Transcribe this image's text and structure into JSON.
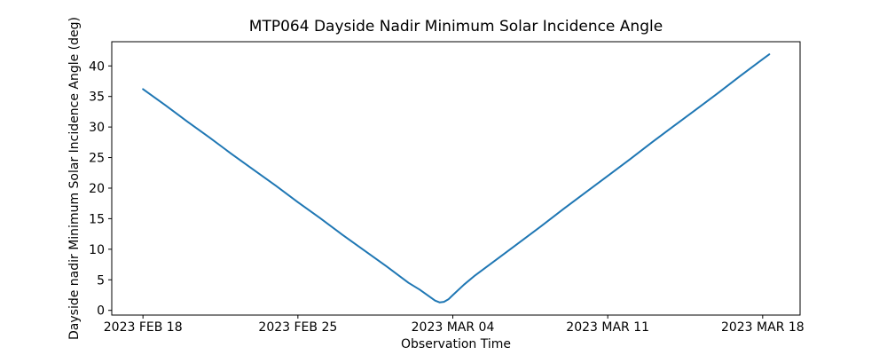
{
  "figure": {
    "background": "#ffffff",
    "text_color": "#000000"
  },
  "chart_data": {
    "type": "line",
    "title": "MTP064 Dayside Nadir Minimum Solar Incidence Angle",
    "xlabel": "Observation Time",
    "ylabel": "Dayside nadir Minimum Solar Incidence Angle (deg)",
    "legend": "none",
    "grid": false,
    "line_color": "#1f77b4",
    "line_width": 2,
    "x_unit": "days since 2023 FEB 18",
    "xlim": [
      -1.41,
      29.69
    ],
    "ylim": [
      -0.77,
      43.96
    ],
    "x_ticks": [
      {
        "day": 0,
        "label": "2023 FEB 18"
      },
      {
        "day": 7,
        "label": "2023 FEB 25"
      },
      {
        "day": 14,
        "label": "2023 MAR 04"
      },
      {
        "day": 21,
        "label": "2023 MAR 11"
      },
      {
        "day": 28,
        "label": "2023 MAR 18"
      }
    ],
    "y_ticks": [
      0,
      5,
      10,
      15,
      20,
      25,
      30,
      35,
      40
    ],
    "series": [
      {
        "name": "dayside-nadir-min-solar-incidence-angle",
        "points": [
          [
            0,
            36.2
          ],
          [
            1,
            33.6
          ],
          [
            2,
            30.9
          ],
          [
            3,
            28.3
          ],
          [
            4,
            25.6
          ],
          [
            5,
            23.0
          ],
          [
            6,
            20.4
          ],
          [
            7,
            17.7
          ],
          [
            8,
            15.1
          ],
          [
            9,
            12.4
          ],
          [
            10,
            9.8
          ],
          [
            11,
            7.2
          ],
          [
            12,
            4.5
          ],
          [
            12.5,
            3.4
          ],
          [
            13,
            2.1
          ],
          [
            13.2,
            1.6
          ],
          [
            13.4,
            1.3
          ],
          [
            13.6,
            1.4
          ],
          [
            13.8,
            1.8
          ],
          [
            14,
            2.5
          ],
          [
            14.5,
            4.2
          ],
          [
            15,
            5.7
          ],
          [
            16,
            8.4
          ],
          [
            17,
            11.1
          ],
          [
            18,
            13.8
          ],
          [
            19,
            16.6
          ],
          [
            20,
            19.3
          ],
          [
            21,
            22.0
          ],
          [
            22,
            24.7
          ],
          [
            23,
            27.5
          ],
          [
            24,
            30.2
          ],
          [
            25,
            32.9
          ],
          [
            26,
            35.6
          ],
          [
            27,
            38.4
          ],
          [
            28,
            41.1
          ],
          [
            28.3,
            41.9
          ]
        ]
      }
    ],
    "annotations": {
      "start_value_deg": 36.2,
      "minimum_value_deg": 1.3,
      "minimum_date": "2023 MAR 03",
      "end_value_deg": 41.9
    }
  }
}
